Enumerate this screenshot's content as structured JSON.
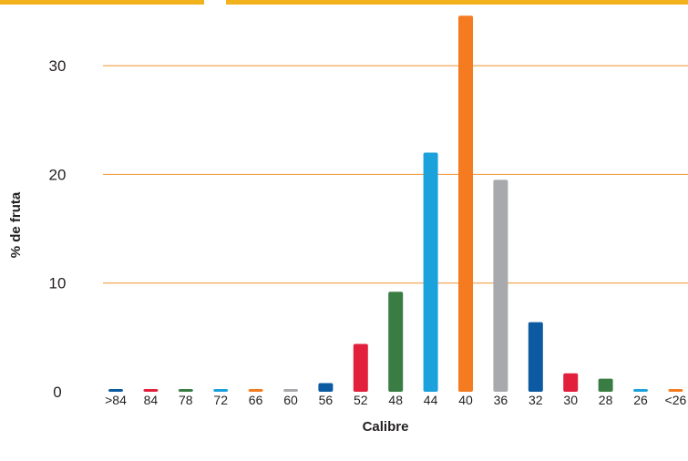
{
  "chart_data": {
    "type": "bar",
    "xlabel": "Calibre",
    "ylabel": "% de fruta",
    "ylim": [
      0,
      35
    ],
    "yticks": [
      0,
      10,
      20,
      30
    ],
    "grid": true,
    "grid_color": "#f0922f",
    "categories": [
      ">84",
      "84",
      "78",
      "72",
      "66",
      "60",
      "56",
      "52",
      "48",
      "44",
      "40",
      "36",
      "32",
      "30",
      "28",
      "26",
      "<26"
    ],
    "values": [
      0.1,
      0.1,
      0.1,
      0.1,
      0.1,
      0.1,
      0.8,
      4.4,
      9.2,
      22.0,
      34.6,
      19.5,
      6.4,
      1.7,
      1.2,
      0.1,
      0.1
    ],
    "colors": [
      "#0b5aa2",
      "#e2203c",
      "#3a7d44",
      "#1ba1dc",
      "#f47b20",
      "#a7a9ac",
      "#0b5aa2",
      "#e2203c",
      "#3a7d44",
      "#1ba1dc",
      "#f47b20",
      "#a7a9ac",
      "#0b5aa2",
      "#e2203c",
      "#3a7d44",
      "#1ba1dc",
      "#f47b20"
    ]
  }
}
